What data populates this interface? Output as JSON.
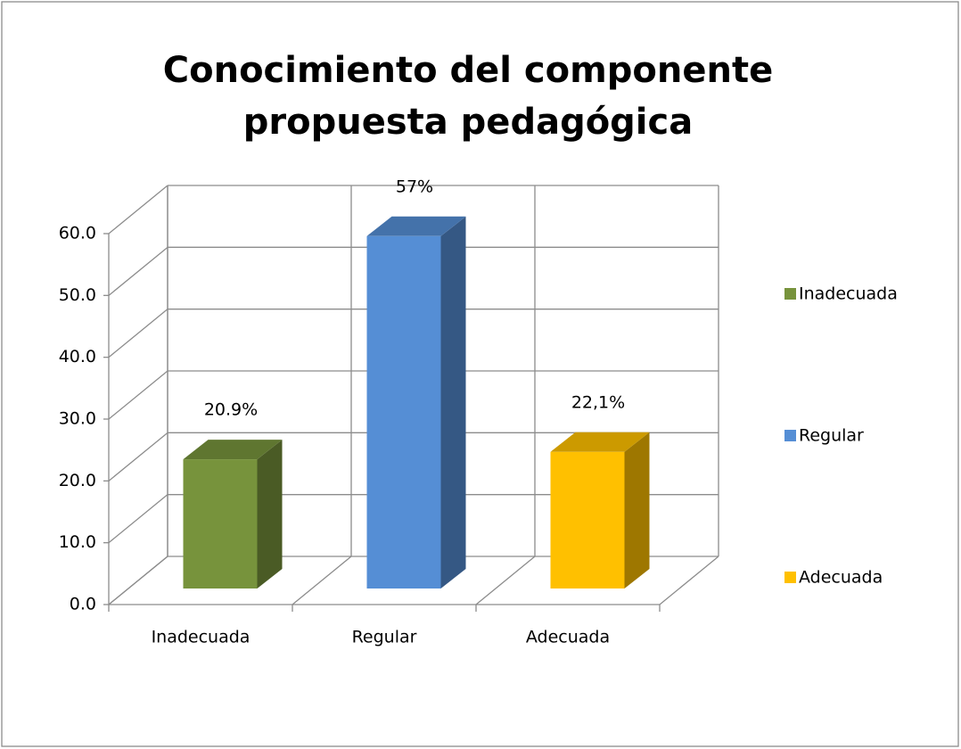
{
  "chart_data": {
    "type": "bar3d",
    "title": "Conocimiento del componente propuesta pedagógica",
    "categories": [
      "Inadecuada",
      "Regular",
      "Adecuada"
    ],
    "values": [
      20.9,
      57,
      22.1
    ],
    "value_labels": [
      "20.9%",
      "57%",
      "22,1%"
    ],
    "colors": [
      "#77933c",
      "#558ed5",
      "#ffc000"
    ],
    "ylim": [
      0,
      60
    ],
    "yticks": [
      {
        "value": 0,
        "label": "0.0"
      },
      {
        "value": 10,
        "label": "10.0"
      },
      {
        "value": 20,
        "label": "20.0"
      },
      {
        "value": 30,
        "label": "30.0"
      },
      {
        "value": 40,
        "label": "40.0"
      },
      {
        "value": 50,
        "label": "50.0"
      },
      {
        "value": 60,
        "label": "60.0"
      }
    ],
    "grid": true,
    "legend": "right"
  }
}
